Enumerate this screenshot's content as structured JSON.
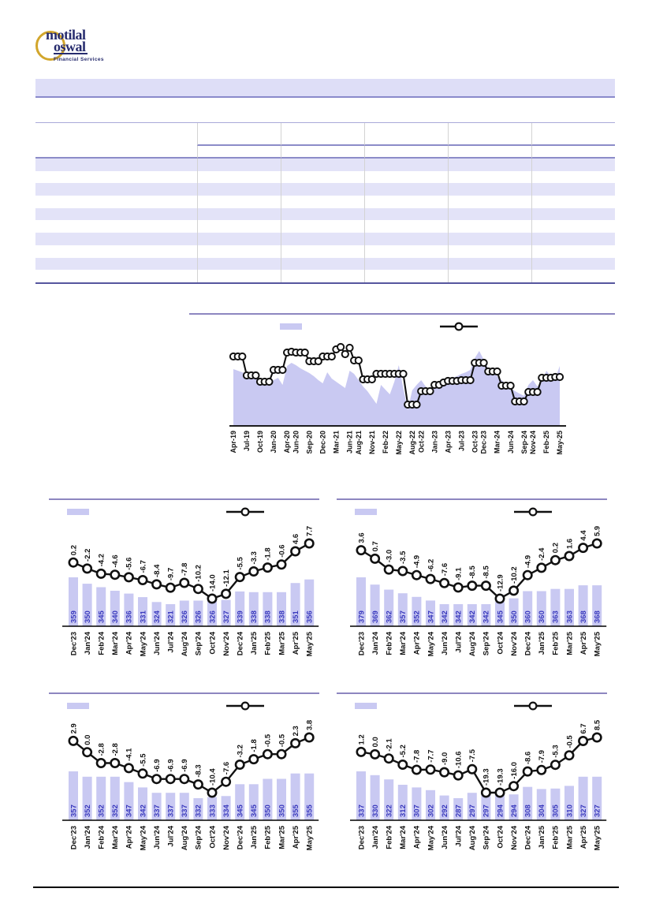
{
  "brand": {
    "line1": "motilal",
    "line2": "oswal",
    "tagline": "Financial Services"
  },
  "colors": {
    "lavender_fill": "#c9c9f2",
    "table_stripe": "#e3e3f8",
    "header_band": "#dedef7",
    "purple_border": "#8a8acb",
    "bar_value_label": "#3939bd",
    "line_series": "#111111"
  },
  "header_band": {
    "text": ""
  },
  "table": {
    "visible_text": ""
  },
  "chart_data": [
    {
      "id": "main-trend-chart",
      "type": "area+line combo, monthly",
      "title": "",
      "legend": {
        "area_label": "",
        "line_label": ""
      },
      "x_range": "Apr-19 to May-25 (74 monthly points)",
      "x_tick_labels": [
        {
          "label": "Apr-19",
          "i": 0
        },
        {
          "label": "Jul-19",
          "i": 3
        },
        {
          "label": "Oct-19",
          "i": 6
        },
        {
          "label": "Jan-20",
          "i": 9
        },
        {
          "label": "Apr-20",
          "i": 12
        },
        {
          "label": "Jun-20",
          "i": 14
        },
        {
          "label": "Sep-20",
          "i": 17
        },
        {
          "label": "Dec-20",
          "i": 20
        },
        {
          "label": "Mar-21",
          "i": 23
        },
        {
          "label": "Jun-21",
          "i": 26
        },
        {
          "label": "Aug-21",
          "i": 28
        },
        {
          "label": "Nov-21",
          "i": 31
        },
        {
          "label": "Feb-22",
          "i": 34
        },
        {
          "label": "May-22",
          "i": 37
        },
        {
          "label": "Aug-22",
          "i": 40
        },
        {
          "label": "Oct-22",
          "i": 42
        },
        {
          "label": "Jan-23",
          "i": 45
        },
        {
          "label": "Apr-23",
          "i": 48
        },
        {
          "label": "Jul-23",
          "i": 51
        },
        {
          "label": "Oct-23",
          "i": 54
        },
        {
          "label": "Dec-23",
          "i": 56
        },
        {
          "label": "Mar-24",
          "i": 59
        },
        {
          "label": "Jun-24",
          "i": 62
        },
        {
          "label": "Sep-24",
          "i": 65
        },
        {
          "label": "Nov-24",
          "i": 67
        },
        {
          "label": "Feb-25",
          "i": 70
        },
        {
          "label": "May-25",
          "i": 73
        }
      ],
      "value_note": "no y-axis or data labels shown; series estimated from pixels, normalized 0-100",
      "series": [
        {
          "name": "area",
          "type": "area",
          "values": [
            72,
            70,
            68,
            66,
            64,
            62,
            59,
            57,
            55,
            58,
            61,
            52,
            76,
            80,
            77,
            73,
            70,
            67,
            63,
            58,
            54,
            68,
            60,
            56,
            52,
            48,
            70,
            66,
            58,
            50,
            44,
            36,
            28,
            52,
            46,
            40,
            56,
            77,
            48,
            20,
            45,
            52,
            58,
            50,
            46,
            53,
            56,
            60,
            58,
            61,
            63,
            66,
            68,
            71,
            86,
            95,
            84,
            73,
            68,
            63,
            58,
            53,
            48,
            44,
            41,
            38,
            52,
            58,
            50,
            56,
            70,
            63,
            60,
            76
          ]
        },
        {
          "name": "line",
          "type": "line",
          "values": [
            88,
            88,
            88,
            64,
            64,
            64,
            56,
            56,
            56,
            71,
            71,
            71,
            93,
            94,
            93,
            93,
            93,
            82,
            82,
            82,
            88,
            88,
            88,
            97,
            100,
            91,
            99,
            83,
            83,
            59,
            59,
            59,
            66,
            66,
            66,
            66,
            66,
            66,
            66,
            27,
            27,
            27,
            44,
            44,
            44,
            52,
            52,
            55,
            57,
            57,
            57,
            58,
            58,
            58,
            80,
            80,
            80,
            69,
            69,
            69,
            51,
            51,
            51,
            31,
            31,
            31,
            43,
            43,
            43,
            61,
            61,
            61,
            62,
            62
          ]
        }
      ]
    },
    {
      "id": "small-chart-top-left",
      "type": "bar+line",
      "title": "",
      "legend": {
        "bar_label": "",
        "line_label": ""
      },
      "categories": [
        "Dec'23",
        "Jan'24",
        "Feb'24",
        "Mar'24",
        "Apr'24",
        "May'24",
        "Jun'24",
        "Jul'24",
        "Aug'24",
        "Sep'24",
        "Oct'24",
        "Nov'24",
        "Dec'24",
        "Jan'25",
        "Feb'25",
        "Mar'25",
        "Apr'25",
        "May'25"
      ],
      "bars": [
        359,
        350,
        345,
        340,
        336,
        331,
        324,
        321,
        326,
        326,
        326,
        327,
        339,
        338,
        338,
        338,
        351,
        356
      ],
      "line": [
        0.2,
        -2.2,
        -4.2,
        -4.6,
        -5.6,
        -6.7,
        -8.4,
        -9.7,
        -7.8,
        -10.2,
        -14.0,
        -12.1,
        -5.5,
        -3.3,
        -1.8,
        -0.6,
        4.6,
        7.7
      ],
      "line_labels": [
        "0.2",
        "-2.2",
        "-4.2",
        "-4.6",
        "-5.6",
        "-6.7",
        "-8.4",
        "-9.7",
        "-7.8",
        "-10.2",
        "-14.0",
        "-12.1",
        "-5.5",
        "-3.3",
        "-1.8",
        "-0.6",
        "4.6",
        "7.7"
      ]
    },
    {
      "id": "small-chart-top-right",
      "type": "bar+line",
      "title": "",
      "legend": {
        "bar_label": "",
        "line_label": ""
      },
      "categories": [
        "Dec'23",
        "Jan'24",
        "Feb'24",
        "Mar'24",
        "Apr'24",
        "May'24",
        "Jun'24",
        "Jul'24",
        "Aug'24",
        "Sep'24",
        "Oct'24",
        "Nov'24",
        "Dec'24",
        "Jan'25",
        "Feb'25",
        "Mar'25",
        "Apr'25",
        "May'25"
      ],
      "bars": [
        379,
        369,
        362,
        357,
        352,
        347,
        342,
        342,
        342,
        342,
        345,
        350,
        360,
        360,
        363,
        363,
        368,
        368
      ],
      "line": [
        3.6,
        0.7,
        -3.0,
        -3.5,
        -4.9,
        -6.2,
        -7.6,
        -9.1,
        -8.5,
        -8.5,
        -12.9,
        -10.2,
        -4.9,
        -2.4,
        0.2,
        1.6,
        4.4,
        5.9
      ],
      "line_labels": [
        "3.6",
        "0.7",
        "-3.0",
        "-3.5",
        "-4.9",
        "-6.2",
        "-7.6",
        "-9.1",
        "-8.5",
        "-8.5",
        "-12.9",
        "-10.2",
        "-4.9",
        "-2.4",
        "0.2",
        "1.6",
        "4.4",
        "5.9"
      ]
    },
    {
      "id": "small-chart-bottom-left",
      "type": "bar+line",
      "title": "",
      "legend": {
        "bar_label": "",
        "line_label": ""
      },
      "categories": [
        "Dec'23",
        "Jan'24",
        "Feb'24",
        "Mar'24",
        "Apr'24",
        "May'24",
        "Jun'24",
        "Jul'24",
        "Aug'24",
        "Sep'24",
        "Oct'24",
        "Nov'24",
        "Dec'24",
        "Jan'25",
        "Feb'25",
        "Mar'25",
        "Apr'25",
        "May'25"
      ],
      "bars": [
        357,
        352,
        352,
        352,
        347,
        342,
        337,
        337,
        337,
        332,
        333,
        334,
        345,
        345,
        350,
        350,
        355,
        355
      ],
      "line": [
        2.9,
        0.0,
        -2.8,
        -2.8,
        -4.1,
        -5.5,
        -6.9,
        -6.9,
        -6.9,
        -8.3,
        -10.4,
        -7.6,
        -3.2,
        -1.8,
        -0.5,
        -0.5,
        2.3,
        3.8
      ],
      "line_labels": [
        "2.9",
        "0.0",
        "-2.8",
        "-2.8",
        "-4.1",
        "-5.5",
        "-6.9",
        "-6.9",
        "-6.9",
        "-8.3",
        "-10.4",
        "-7.6",
        "-3.2",
        "-1.8",
        "-0.5",
        "-0.5",
        "2.3",
        "3.8"
      ]
    },
    {
      "id": "small-chart-bottom-right",
      "type": "bar+line",
      "title": "",
      "legend": {
        "bar_label": "",
        "line_label": ""
      },
      "categories": [
        "Dec'23",
        "Jan'24",
        "Feb'24",
        "Mar'24",
        "Apr'24",
        "May'24",
        "Jun'24",
        "Jul'24",
        "Aug'24",
        "Sep'24",
        "Oct'24",
        "Nov'24",
        "Dec'24",
        "Jan'25",
        "Feb'25",
        "Mar'25",
        "Apr'25",
        "May'25"
      ],
      "bars": [
        337,
        330,
        322,
        312,
        307,
        302,
        292,
        287,
        297,
        297,
        294,
        294,
        308,
        304,
        305,
        310,
        327,
        327
      ],
      "line": [
        1.2,
        0.0,
        -2.1,
        -5.2,
        -7.8,
        -7.7,
        -9.0,
        -10.6,
        -7.5,
        -19.3,
        -19.3,
        -16.0,
        -8.6,
        -7.9,
        -5.3,
        -0.5,
        6.7,
        8.5
      ],
      "line_labels": [
        "1.2",
        "0.0",
        "-2.1",
        "-5.2",
        "-7.8",
        "-7.7",
        "-9.0",
        "-10.6",
        "-7.5",
        "-19.3",
        "-19.3",
        "-16.0",
        "-8.6",
        "-7.9",
        "-5.3",
        "-0.5",
        "6.7",
        "8.5"
      ]
    }
  ]
}
